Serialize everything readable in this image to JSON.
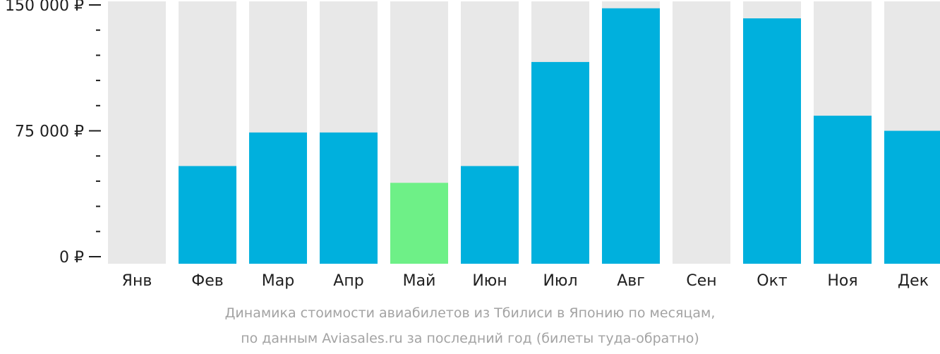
{
  "chart_data": {
    "type": "bar",
    "categories": [
      "Янв",
      "Фев",
      "Мар",
      "Апр",
      "Май",
      "Июн",
      "Июл",
      "Авг",
      "Сен",
      "Окт",
      "Ноя",
      "Дек"
    ],
    "values": [
      null,
      54000,
      74000,
      74000,
      44000,
      54000,
      116000,
      148000,
      null,
      142000,
      84000,
      75000
    ],
    "highlight_index": 4,
    "ylim": [
      0,
      150000
    ],
    "y_major_ticks": [
      {
        "value": 0,
        "label": "0 ₽"
      },
      {
        "value": 75000,
        "label": "75 000 ₽"
      },
      {
        "value": 150000,
        "label": "150 000 ₽"
      }
    ],
    "y_minor_step": 15000,
    "grid": false,
    "colors": {
      "bar": "#00b0dd",
      "highlight": "#6ef087",
      "track": "#e8e8e8"
    }
  },
  "caption": {
    "line1": "Динамика стоимости авиабилетов из Тбилиси в Японию по месяцам,",
    "line2": "по данным Aviasales.ru за последний год (билеты туда-обратно)"
  }
}
